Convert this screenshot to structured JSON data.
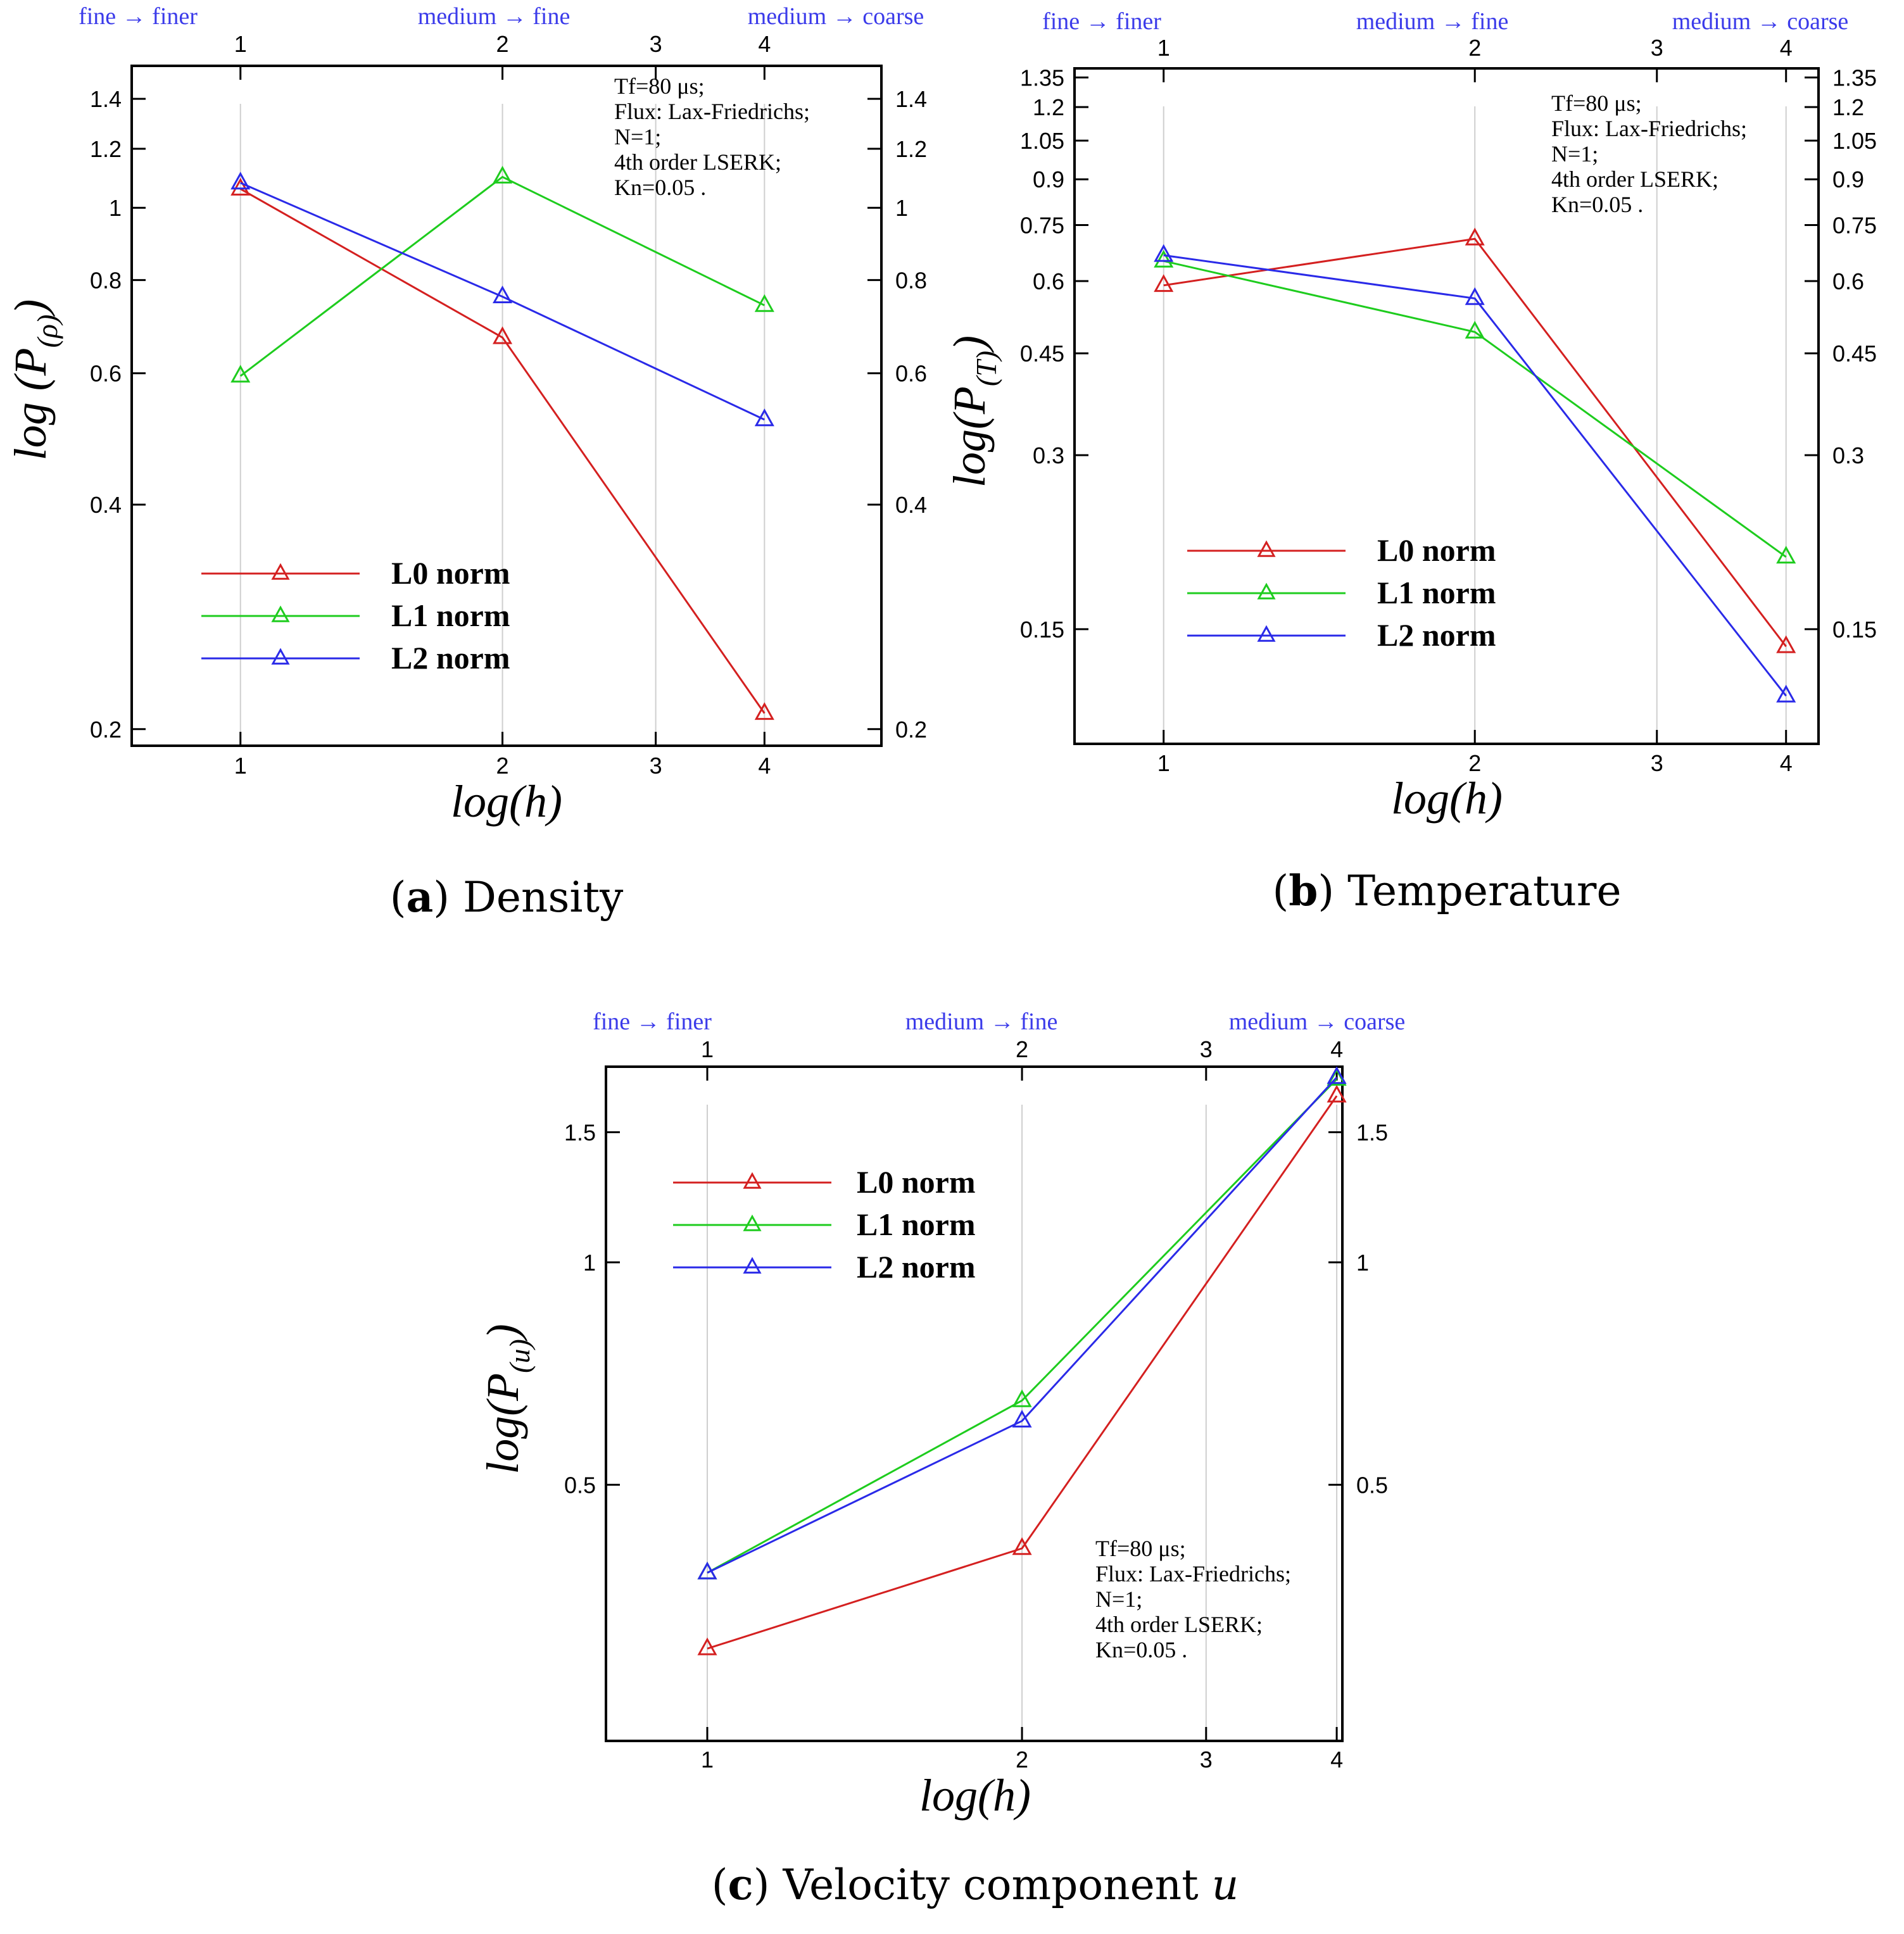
{
  "chart_data": [
    {
      "type": "line",
      "id": "a",
      "title": "Density",
      "caption_letter": "a",
      "caption_text": "Density",
      "xlabel": "log(h)",
      "ylabel": "log (P(ρ))",
      "ylabel_base": "log (P",
      "ylabel_sub": "(ρ)",
      "ylabel_close": ")",
      "yscale": "log",
      "ylim": [
        0.19,
        1.55
      ],
      "xlim": [
        0.75,
        5.45
      ],
      "x": [
        1,
        2,
        4
      ],
      "xticks": [
        "1",
        "2",
        "3",
        "4"
      ],
      "yticks": [
        0.2,
        0.4,
        0.6,
        0.8,
        1,
        1.2,
        1.4
      ],
      "ytick_labels": [
        "0.2",
        "0.4",
        "0.6",
        "0.8",
        "1",
        "1.2",
        "1.4"
      ],
      "top_labels": [
        "fine → finer",
        "medium → fine",
        "medium → coarse"
      ],
      "legend": [
        "L0 norm",
        "L1 norm",
        "L2 norm"
      ],
      "series": [
        {
          "name": "L0 norm",
          "color": "#d42020",
          "values": [
            1.06,
            0.67,
            0.21
          ]
        },
        {
          "name": "L1 norm",
          "color": "#1ecc1e",
          "values": [
            0.595,
            1.1,
            0.74
          ]
        },
        {
          "name": "L2 norm",
          "color": "#2a2ae8",
          "values": [
            1.08,
            0.76,
            0.52
          ]
        }
      ],
      "annotation": [
        "Tf=80  μs;",
        "Flux: Lax-Friedrichs;",
        "N=1;",
        "4th order LSERK;",
        "Kn=0.05 ."
      ]
    },
    {
      "type": "line",
      "id": "b",
      "title": "Temperature",
      "caption_letter": "b",
      "caption_text": "Temperature",
      "xlabel": "log(h)",
      "ylabel": "log(P(T))",
      "ylabel_base": "log(P",
      "ylabel_sub": "(T)",
      "ylabel_close": ")",
      "yscale": "log",
      "ylim": [
        0.095,
        1.4
      ],
      "xlim": [
        0.82,
        4.3
      ],
      "x": [
        1,
        2,
        4
      ],
      "xticks": [
        "1",
        "2",
        "3",
        "4"
      ],
      "yticks": [
        0.15,
        0.3,
        0.45,
        0.6,
        0.75,
        0.9,
        1.05,
        1.2,
        1.35
      ],
      "ytick_labels": [
        "0.15",
        "0.3",
        "0.45",
        "0.6",
        "0.75",
        "0.9",
        "1.05",
        "1.2",
        "1.35"
      ],
      "top_labels": [
        "fine → finer",
        "medium → fine",
        "medium → coarse"
      ],
      "legend": [
        "L0 norm",
        "L1 norm",
        "L2 norm"
      ],
      "series": [
        {
          "name": "L0 norm",
          "color": "#d42020",
          "values": [
            0.59,
            0.71,
            0.14
          ]
        },
        {
          "name": "L1 norm",
          "color": "#1ecc1e",
          "values": [
            0.65,
            0.49,
            0.2
          ]
        },
        {
          "name": "L2 norm",
          "color": "#2a2ae8",
          "values": [
            0.665,
            0.56,
            0.115
          ]
        }
      ],
      "annotation": [
        "Tf=80  μs;",
        "Flux: Lax-Friedrichs;",
        "N=1;",
        "4th order LSERK;",
        "Kn=0.05 ."
      ]
    },
    {
      "type": "line",
      "id": "c",
      "title": "Velocity component u",
      "caption_letter": "c",
      "caption_text": "Velocity component ",
      "caption_var": "u",
      "xlabel": "log(h)",
      "ylabel": "log(P(u))",
      "ylabel_base": "log(P",
      "ylabel_sub": "(u)",
      "ylabel_close": ")",
      "yscale": "log",
      "ylim": [
        0.225,
        1.84
      ],
      "xlim": [
        0.8,
        4.05
      ],
      "x": [
        1,
        2,
        4
      ],
      "xticks": [
        "1",
        "2",
        "3",
        "4"
      ],
      "yticks": [
        0.5,
        1,
        1.5
      ],
      "ytick_labels": [
        "0.5",
        "1",
        "1.5"
      ],
      "top_labels": [
        "fine → finer",
        "medium → fine",
        "medium → coarse"
      ],
      "legend": [
        "L0 norm",
        "L1 norm",
        "L2 norm"
      ],
      "series": [
        {
          "name": "L0 norm",
          "color": "#d42020",
          "values": [
            0.3,
            0.41,
            1.68
          ]
        },
        {
          "name": "L1 norm",
          "color": "#1ecc1e",
          "values": [
            0.38,
            0.65,
            1.77
          ]
        },
        {
          "name": "L2 norm",
          "color": "#2a2ae8",
          "values": [
            0.38,
            0.61,
            1.78
          ]
        }
      ],
      "annotation": [
        "Tf=80  μs;",
        "Flux: Lax-Friedrichs;",
        "N=1;",
        "4th order LSERK;",
        "Kn=0.05 ."
      ]
    }
  ]
}
